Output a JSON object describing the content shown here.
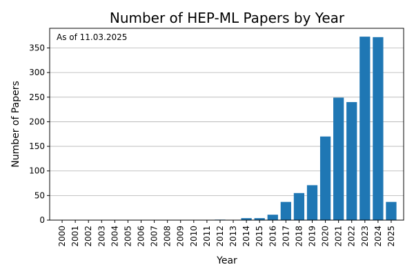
{
  "chart_data": {
    "type": "bar",
    "title": "Number of HEP-ML Papers by Year",
    "xlabel": "Year",
    "ylabel": "Number of Papers",
    "annotation": "As of 11.03.2025",
    "ylim": [
      0,
      390
    ],
    "yticks": [
      0,
      50,
      100,
      150,
      200,
      250,
      300,
      350
    ],
    "grid": "y",
    "bar_color": "#1f77b4",
    "categories": [
      "2000",
      "2001",
      "2002",
      "2003",
      "2004",
      "2005",
      "2006",
      "2007",
      "2008",
      "2009",
      "2010",
      "2011",
      "2012",
      "2013",
      "2014",
      "2015",
      "2016",
      "2017",
      "2018",
      "2019",
      "2020",
      "2021",
      "2022",
      "2023",
      "2024",
      "2025"
    ],
    "values": [
      0,
      0,
      0,
      0,
      0,
      0,
      0,
      0,
      0,
      0,
      0,
      0,
      1,
      0,
      4,
      4,
      11,
      37,
      55,
      71,
      170,
      249,
      240,
      373,
      372,
      37
    ]
  }
}
